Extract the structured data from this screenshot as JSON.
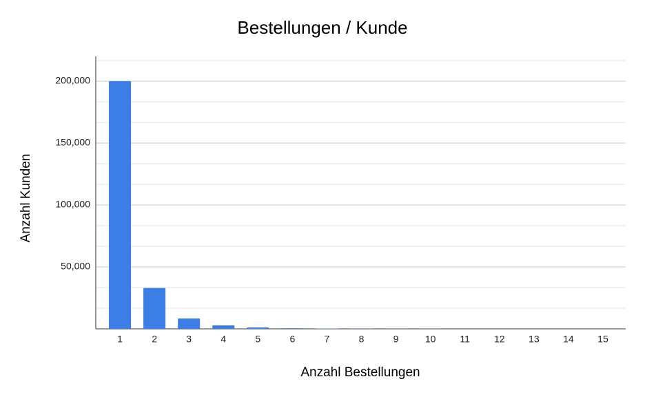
{
  "chart_data": {
    "type": "bar",
    "title": "Bestellungen / Kunde",
    "x_label": "Anzahl Bestellungen",
    "y_label": "Anzahl Kunden",
    "categories": [
      "1",
      "2",
      "3",
      "4",
      "5",
      "6",
      "7",
      "8",
      "9",
      "10",
      "11",
      "12",
      "13",
      "14",
      "15"
    ],
    "values": [
      200000,
      33000,
      8400,
      2800,
      1100,
      500,
      300,
      150,
      80,
      50,
      30,
      20,
      15,
      10,
      8
    ],
    "color": "#3b7fe6",
    "ylim": [
      0,
      216667
    ],
    "yticks": [
      {
        "value": 50000,
        "label": "50,000"
      },
      {
        "value": 100000,
        "label": "100,000"
      },
      {
        "value": 150000,
        "label": "150,000"
      },
      {
        "value": 200000,
        "label": "200,000"
      }
    ],
    "grid": true
  }
}
